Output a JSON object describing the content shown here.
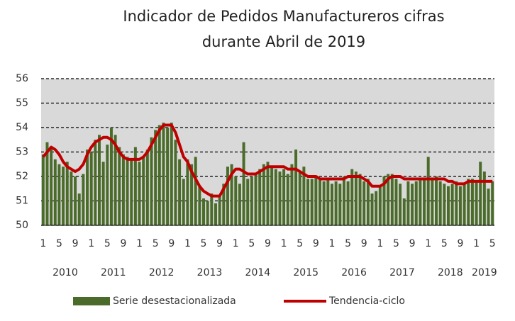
{
  "chart_data": {
    "type": "bar",
    "title": [
      "Indicador de Pedidos Manufactureros cifras",
      "durante Abril de 2019"
    ],
    "categories": [
      "1",
      null,
      null,
      null,
      "5",
      null,
      null,
      null,
      "9",
      null,
      null,
      null,
      "1",
      null,
      null,
      null,
      "5",
      null,
      null,
      null,
      "9",
      null,
      null,
      null,
      "1",
      null,
      null,
      null,
      "5",
      null,
      null,
      null,
      "9",
      null,
      null,
      null,
      "1",
      null,
      null,
      null,
      "5",
      null,
      null,
      null,
      "9",
      null,
      null,
      null,
      "1",
      null,
      null,
      null,
      "5",
      null,
      null,
      null,
      "9",
      null,
      null,
      null,
      "1",
      null,
      null,
      null,
      "5",
      null,
      null,
      null,
      "9",
      null,
      null,
      null,
      "1",
      null,
      null,
      null,
      "5",
      null,
      null,
      null,
      "9",
      null,
      null,
      null,
      "1",
      null,
      null,
      null,
      "5",
      null,
      null,
      null,
      "9",
      null,
      null,
      null,
      "1",
      null,
      null,
      null,
      "5",
      null,
      null,
      null,
      "9",
      null,
      null,
      null,
      "1",
      null,
      null,
      null,
      "5"
    ],
    "x_groups": [
      "2010",
      "2011",
      "2012",
      "2013",
      "2014",
      "2015",
      "2016",
      "2017",
      "2018",
      "2019"
    ],
    "series": [
      {
        "name": "Serie desestacionalizada",
        "type": "bar",
        "color": "#4a6b2a",
        "values": [
          52.9,
          53.4,
          53.2,
          52.7,
          52.5,
          52.4,
          52.6,
          52.2,
          52.0,
          51.3,
          52.1,
          53.1,
          53.0,
          53.5,
          53.7,
          52.6,
          53.3,
          54.0,
          53.7,
          53.2,
          52.9,
          52.8,
          52.7,
          53.2,
          52.6,
          52.8,
          53.1,
          53.6,
          53.9,
          54.1,
          54.2,
          54.0,
          54.2,
          53.5,
          52.7,
          51.9,
          52.7,
          52.5,
          52.8,
          51.6,
          51.1,
          51.0,
          51.3,
          50.9,
          51.2,
          51.7,
          52.4,
          52.5,
          52.0,
          51.7,
          53.4,
          51.9,
          52.0,
          52.1,
          52.3,
          52.5,
          52.6,
          52.4,
          52.3,
          52.2,
          52.3,
          52.1,
          52.5,
          53.1,
          52.2,
          52.4,
          51.9,
          51.9,
          52.0,
          51.9,
          51.8,
          51.9,
          51.7,
          51.8,
          51.7,
          52.0,
          51.8,
          52.3,
          52.2,
          52.1,
          51.8,
          51.9,
          51.3,
          51.4,
          51.6,
          52.0,
          52.1,
          52.1,
          51.9,
          51.7,
          51.1,
          51.8,
          51.7,
          51.8,
          51.9,
          51.9,
          52.8,
          51.9,
          52.0,
          51.8,
          51.7,
          51.6,
          51.7,
          51.8,
          51.6,
          51.7,
          51.9,
          51.9,
          51.8,
          52.6,
          52.2,
          51.5,
          51.8
        ]
      },
      {
        "name": "Tendencia-ciclo",
        "type": "line",
        "color": "#c00000",
        "values": [
          52.8,
          53.0,
          53.2,
          53.1,
          52.9,
          52.6,
          52.4,
          52.3,
          52.2,
          52.3,
          52.5,
          52.9,
          53.2,
          53.4,
          53.5,
          53.6,
          53.6,
          53.5,
          53.3,
          53.0,
          52.8,
          52.7,
          52.7,
          52.7,
          52.7,
          52.8,
          53.0,
          53.3,
          53.6,
          53.9,
          54.1,
          54.1,
          54.1,
          53.8,
          53.3,
          52.8,
          52.6,
          52.2,
          51.9,
          51.6,
          51.4,
          51.3,
          51.2,
          51.2,
          51.2,
          51.5,
          51.8,
          52.1,
          52.3,
          52.3,
          52.2,
          52.1,
          52.1,
          52.1,
          52.2,
          52.3,
          52.4,
          52.4,
          52.4,
          52.4,
          52.4,
          52.3,
          52.3,
          52.3,
          52.2,
          52.1,
          52.0,
          52.0,
          52.0,
          51.9,
          51.9,
          51.9,
          51.9,
          51.9,
          51.9,
          51.9,
          52.0,
          52.0,
          52.0,
          52.0,
          51.9,
          51.8,
          51.6,
          51.6,
          51.6,
          51.7,
          51.9,
          52.0,
          52.0,
          52.0,
          51.9,
          51.9,
          51.9,
          51.9,
          51.9,
          51.9,
          51.9,
          51.9,
          51.9,
          51.9,
          51.9,
          51.8,
          51.8,
          51.7,
          51.7,
          51.7,
          51.8,
          51.8,
          51.8,
          51.8,
          51.8,
          51.8,
          51.8
        ]
      }
    ],
    "ylim": [
      50,
      56
    ],
    "yticks": [
      50,
      51,
      52,
      53,
      54,
      55,
      56
    ],
    "grid": true,
    "plot_background": "#d9d9d9",
    "legend": "bottom"
  }
}
